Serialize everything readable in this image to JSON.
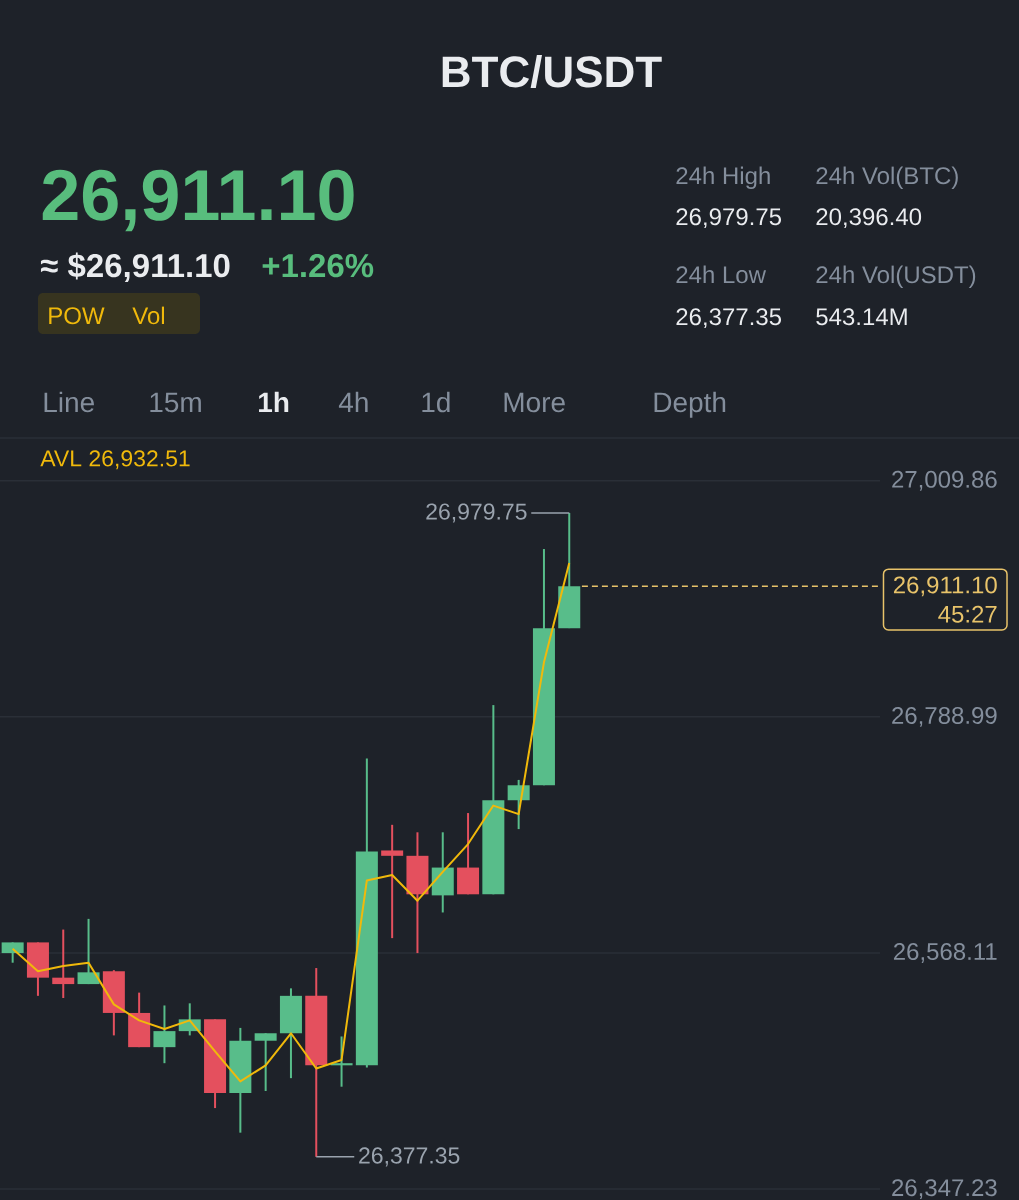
{
  "chart_data": {
    "type": "candlestick",
    "title": "BTC/USDT",
    "categories": [
      null,
      null,
      null,
      null,
      null,
      null,
      null,
      null,
      null,
      null,
      null,
      null,
      null,
      null,
      null,
      null,
      null,
      null,
      null,
      null,
      null,
      null,
      null
    ],
    "ohlc": [
      [
        26568,
        26578,
        26559,
        26578
      ],
      [
        26578,
        26578,
        26528,
        26545
      ],
      [
        26545,
        26590,
        26526,
        26539
      ],
      [
        26539,
        26600,
        26539,
        26550
      ],
      [
        26551,
        26552,
        26491,
        26512
      ],
      [
        26512,
        26531,
        26480,
        26480
      ],
      [
        26480,
        26519,
        26465,
        26495
      ],
      [
        26495,
        26521,
        26491,
        26506
      ],
      [
        26506,
        26506,
        26423,
        26437
      ],
      [
        26437,
        26498,
        26400,
        26486
      ],
      [
        26486,
        26493,
        26439,
        26493
      ],
      [
        26493,
        26535,
        26451,
        26528
      ],
      [
        26528,
        26554,
        26377.35,
        26463
      ],
      [
        26463,
        26490,
        26443,
        26465
      ],
      [
        26463,
        26750,
        26461,
        26663
      ],
      [
        26664,
        26688,
        26582,
        26659
      ],
      [
        26659,
        26681,
        26568,
        26623
      ],
      [
        26622,
        26681,
        26606,
        26648
      ],
      [
        26648,
        26699,
        26623,
        26623
      ],
      [
        26623,
        26800,
        26623,
        26711
      ],
      [
        26711,
        26730,
        26684,
        26725
      ],
      [
        26725,
        26946,
        26725,
        26872
      ],
      [
        26872,
        26979.75,
        26872,
        26911.1
      ]
    ],
    "colors": [
      "#58bd8a",
      "#e4505e",
      "#e4505e",
      "#58bd8a",
      "#e4505e",
      "#e4505e",
      "#58bd8a",
      "#58bd8a",
      "#e4505e",
      "#58bd8a",
      "#58bd8a",
      "#58bd8a",
      "#e4505e",
      "#58bd8a",
      "#58bd8a",
      "#e4505e",
      "#e4505e",
      "#58bd8a",
      "#e4505e",
      "#58bd8a",
      "#58bd8a",
      "#58bd8a",
      "#58bd8a"
    ],
    "series": [
      {
        "type": "line",
        "name": "AVL 26,932.51",
        "color": "#f0b90b",
        "values": [
          26572,
          26551,
          26556,
          26559,
          26520,
          26505,
          26497,
          26505,
          26476,
          26448,
          26463,
          26493,
          26460,
          26468,
          26636,
          26641,
          26617,
          26644,
          26670,
          26706,
          26698,
          26840,
          26933
        ]
      }
    ],
    "ylim": [
      26337,
      27048
    ],
    "yticks": [
      {
        "value": 26347.23,
        "label": "26,347.23"
      },
      {
        "value": 26568.11,
        "label": "26,568.11"
      },
      {
        "value": 26788.99,
        "label": "26,788.99"
      },
      {
        "value": 27009.86,
        "label": "27,009.86"
      }
    ],
    "grid": "y",
    "tick_labels": "y",
    "ref_lines": [
      {
        "axis": "y",
        "value": 26911.1,
        "label": "26,911.10",
        "color": "#e8c36a",
        "line_style": "dashed"
      }
    ],
    "annotations": [
      "26,911.10",
      "≈ $26,911.10",
      "+1.26%",
      "POW",
      "Vol",
      "24h High",
      "26,979.75",
      "24h Vol(BTC)",
      "20,396.40",
      "24h Low",
      "26,377.35",
      "24h Vol(USDT)",
      "543.14M",
      "Line",
      "15m",
      "1h",
      "4h",
      "1d",
      "More",
      "Depth",
      "26,979.75",
      "26,377.35",
      "45:27"
    ]
  }
}
